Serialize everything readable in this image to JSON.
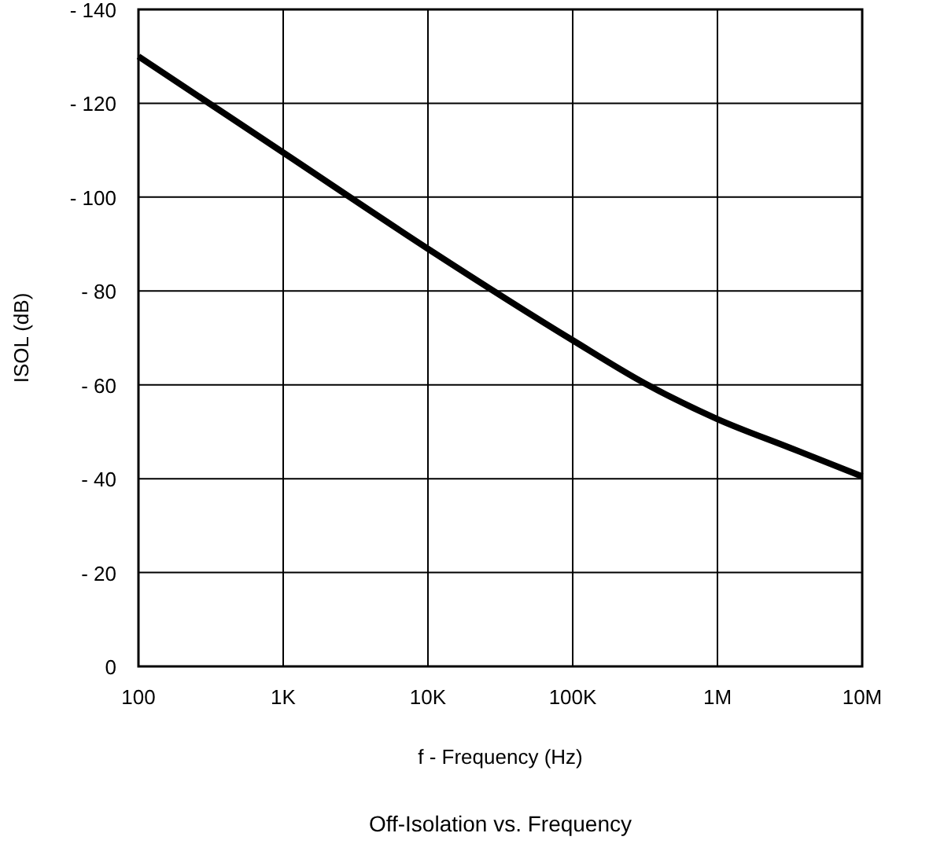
{
  "chart_data": {
    "type": "line",
    "title": "Off-Isolation vs. Frequency",
    "xlabel": "f - Frequency (Hz)",
    "ylabel": "ISOL (dB)",
    "log": "x",
    "x": [
      100,
      1000,
      10000,
      100000,
      316000,
      1000000,
      3160000,
      10000000
    ],
    "series": [
      {
        "color": "#000000",
        "values": [
          -130,
          -109.5,
          -89,
          -69.5,
          -60.3,
          -52.7,
          -46.6,
          -40.5
        ]
      }
    ],
    "xlim": [
      100,
      10000000
    ],
    "xticks": [
      100,
      {
        "value": 1000,
        "label": "1K"
      },
      {
        "value": 10000,
        "label": "10K"
      },
      {
        "value": 100000,
        "label": "100K"
      },
      {
        "value": 1000000,
        "label": "1M"
      },
      {
        "value": 10000000,
        "label": "10M"
      }
    ],
    "ylim": [
      0,
      -140
    ],
    "yticks": [
      0,
      {
        "value": -20,
        "label": "- 20"
      },
      {
        "value": -40,
        "label": "- 40"
      },
      {
        "value": -60,
        "label": "- 60"
      },
      {
        "value": -80,
        "label": "- 80"
      },
      {
        "value": -100,
        "label": "- 100"
      },
      {
        "value": -120,
        "label": "- 120"
      },
      {
        "value": -140,
        "label": "- 140"
      }
    ],
    "grid": true,
    "marker": "none",
    "line_style": "solid"
  }
}
